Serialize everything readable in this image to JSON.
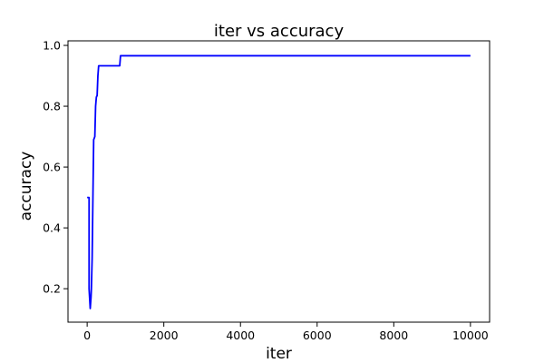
{
  "chart_data": {
    "type": "line",
    "title": "iter vs accuracy",
    "xlabel": "iter",
    "ylabel": "accuracy",
    "xlim": [
      -500,
      10500
    ],
    "ylim": [
      0.09,
      1.015
    ],
    "xticks": [
      0,
      2000,
      4000,
      6000,
      8000,
      10000
    ],
    "yticks": [
      0.2,
      0.4,
      0.6,
      0.8,
      1.0
    ],
    "xtick_labels": [
      "0",
      "2000",
      "4000",
      "6000",
      "8000",
      "10000"
    ],
    "ytick_labels": [
      "0.2",
      "0.4",
      "0.6",
      "0.8",
      "1.0"
    ],
    "grid": false,
    "series": [
      {
        "color": "#0000ff",
        "x": [
          0,
          50,
          50,
          80,
          100,
          110,
          130,
          150,
          170,
          200,
          220,
          240,
          260,
          280,
          300,
          340,
          850,
          870,
          900,
          10000
        ],
        "y": [
          0.5,
          0.5,
          0.2,
          0.135,
          0.17,
          0.2,
          0.3,
          0.5,
          0.69,
          0.7,
          0.8,
          0.83,
          0.835,
          0.9,
          0.933,
          0.933,
          0.933,
          0.966,
          0.966,
          0.966
        ]
      }
    ]
  }
}
